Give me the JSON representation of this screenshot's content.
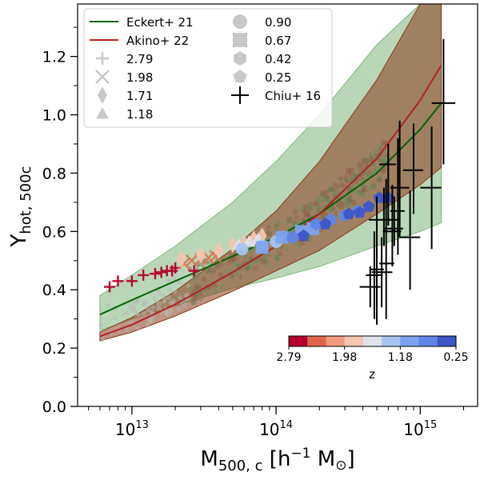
{
  "chart_data": {
    "type": "scatter",
    "xscale": "log",
    "xlim": [
      4200000000000.0,
      2500000000000000.0
    ],
    "ylim": [
      0.0,
      1.38
    ],
    "xlabel": "M",
    "xlabel_sub": "500, c",
    "xlabel_unit_open": " [h",
    "xlabel_unit_sup": "−1",
    "xlabel_unit_close": " M",
    "xlabel_sun": "⊙",
    "xlabel_end": "]",
    "ylabel": "Y",
    "ylabel_sub": "hot, 500c",
    "y_ticks": [
      0.0,
      0.2,
      0.4,
      0.6,
      0.8,
      1.0,
      1.2
    ],
    "y_tick_labels": [
      "0.0",
      "0.2",
      "0.4",
      "0.6",
      "0.8",
      "1.0",
      "1.2"
    ],
    "x_major_ticks": [
      10000000000000.0,
      100000000000000.0,
      1000000000000000.0
    ],
    "x_major_labels": [
      {
        "base": "10",
        "exp": "13"
      },
      {
        "base": "10",
        "exp": "14"
      },
      {
        "base": "10",
        "exp": "15"
      }
    ],
    "colors": {
      "eckert_line": "#006400",
      "eckert_band": "#7fb77e",
      "akino_line": "#b22222",
      "akino_band": "#8b3a1a",
      "chiu": "#000000",
      "gray_marker": "#c8c8c8"
    },
    "eckert": {
      "label": "Eckert+ 21",
      "x": [
        6000000000000.0,
        10000000000000.0,
        20000000000000.0,
        50000000000000.0,
        100000000000000.0,
        200000000000000.0,
        500000000000000.0,
        1000000000000000.0,
        1400000000000000.0
      ],
      "y": [
        0.315,
        0.365,
        0.43,
        0.515,
        0.58,
        0.66,
        0.8,
        0.95,
        1.04
      ],
      "lower": [
        0.26,
        0.3,
        0.345,
        0.405,
        0.44,
        0.48,
        0.55,
        0.6,
        0.63
      ],
      "upper": [
        0.38,
        0.45,
        0.55,
        0.7,
        0.84,
        1.0,
        1.24,
        1.38,
        1.38
      ]
    },
    "akino": {
      "label": "Akino+ 22",
      "x": [
        6000000000000.0,
        10000000000000.0,
        20000000000000.0,
        50000000000000.0,
        100000000000000.0,
        200000000000000.0,
        500000000000000.0,
        1000000000000000.0,
        1400000000000000.0
      ],
      "y": [
        0.24,
        0.28,
        0.35,
        0.46,
        0.55,
        0.66,
        0.85,
        1.05,
        1.17
      ],
      "lower": [
        0.225,
        0.255,
        0.31,
        0.395,
        0.465,
        0.535,
        0.66,
        0.76,
        0.82
      ],
      "upper": [
        0.255,
        0.305,
        0.395,
        0.54,
        0.67,
        0.84,
        1.12,
        1.38,
        1.38
      ]
    },
    "chiu": {
      "label": "Chiu+ 16",
      "points": [
        {
          "x": 450000000000000.0,
          "y": 0.41,
          "xlo": 380000000000000.0,
          "xhi": 530000000000000.0,
          "ylo": 0.34,
          "yhi": 0.48
        },
        {
          "x": 480000000000000.0,
          "y": 0.45,
          "xlo": 420000000000000.0,
          "xhi": 550000000000000.0,
          "ylo": 0.3,
          "yhi": 0.6
        },
        {
          "x": 500000000000000.0,
          "y": 0.47,
          "xlo": 450000000000000.0,
          "xhi": 560000000000000.0,
          "ylo": 0.28,
          "yhi": 0.72
        },
        {
          "x": 540000000000000.0,
          "y": 0.46,
          "xlo": 460000000000000.0,
          "xhi": 640000000000000.0,
          "ylo": 0.34,
          "yhi": 0.58
        },
        {
          "x": 560000000000000.0,
          "y": 0.64,
          "xlo": 440000000000000.0,
          "xhi": 700000000000000.0,
          "ylo": 0.55,
          "yhi": 0.75
        },
        {
          "x": 580000000000000.0,
          "y": 0.49,
          "xlo": 520000000000000.0,
          "xhi": 660000000000000.0,
          "ylo": 0.3,
          "yhi": 0.78
        },
        {
          "x": 600000000000000.0,
          "y": 0.83,
          "xlo": 520000000000000.0,
          "xhi": 680000000000000.0,
          "ylo": 0.62,
          "yhi": 0.9
        },
        {
          "x": 640000000000000.0,
          "y": 0.6,
          "xlo": 550000000000000.0,
          "xhi": 740000000000000.0,
          "ylo": 0.48,
          "yhi": 0.76
        },
        {
          "x": 660000000000000.0,
          "y": 0.61,
          "xlo": 560000000000000.0,
          "xhi": 760000000000000.0,
          "ylo": 0.55,
          "yhi": 0.72
        },
        {
          "x": 700000000000000.0,
          "y": 0.67,
          "xlo": 620000000000000.0,
          "xhi": 780000000000000.0,
          "ylo": 0.52,
          "yhi": 0.92
        },
        {
          "x": 720000000000000.0,
          "y": 0.75,
          "xlo": 620000000000000.0,
          "xhi": 840000000000000.0,
          "ylo": 0.58,
          "yhi": 0.98
        },
        {
          "x": 850000000000000.0,
          "y": 0.58,
          "xlo": 720000000000000.0,
          "xhi": 1000000000000000.0,
          "ylo": 0.4,
          "yhi": 0.74
        },
        {
          "x": 900000000000000.0,
          "y": 0.81,
          "xlo": 760000000000000.0,
          "xhi": 1050000000000000.0,
          "ylo": 0.66,
          "yhi": 0.97
        },
        {
          "x": 1200000000000000.0,
          "y": 0.75,
          "xlo": 1000000000000000.0,
          "xhi": 1400000000000000.0,
          "ylo": 0.54,
          "yhi": 0.96
        },
        {
          "x": 1450000000000000.0,
          "y": 1.04,
          "xlo": 1200000000000000.0,
          "xhi": 1750000000000000.0,
          "ylo": 0.83,
          "yhi": 1.26
        }
      ]
    },
    "colored_series": [
      {
        "name": "2.79",
        "marker": "plus",
        "color": "#b5002a",
        "x": [
          7000000000000.0,
          8000000000000.0,
          10000000000000.0,
          12000000000000.0,
          14500000000000.0,
          16000000000000.0,
          17500000000000.0,
          19000000000000.0,
          20000000000000.0,
          27000000000000.0
        ],
        "y": [
          0.41,
          0.43,
          0.43,
          0.45,
          0.455,
          0.46,
          0.465,
          0.465,
          0.475,
          0.465
        ]
      },
      {
        "name": "1.98",
        "marker": "cross",
        "color": "#d9794f",
        "x": [
          23000000000000.0,
          26000000000000.0,
          30000000000000.0,
          34000000000000.0,
          38000000000000.0
        ],
        "y": [
          0.49,
          0.5,
          0.505,
          0.51,
          0.515
        ]
      },
      {
        "name": "1.71",
        "marker": "diamond",
        "color": "#f2c6b0",
        "x": [
          22000000000000.0,
          30000000000000.0,
          40000000000000.0,
          50000000000000.0,
          60000000000000.0,
          70000000000000.0,
          80000000000000.0
        ],
        "y": [
          0.505,
          0.52,
          0.535,
          0.555,
          0.56,
          0.575,
          0.585
        ]
      },
      {
        "name": "1.18",
        "marker": "triangle",
        "color": "#dfe3ea",
        "x": [
          55000000000000.0,
          65000000000000.0,
          75000000000000.0
        ],
        "y": [
          0.555,
          0.565,
          0.575
        ]
      },
      {
        "name": "0.90",
        "marker": "circle",
        "color": "#a8c4f0",
        "x": [
          58000000000000.0,
          80000000000000.0,
          100000000000000.0
        ],
        "y": [
          0.54,
          0.55,
          0.565
        ]
      },
      {
        "name": "0.67",
        "marker": "square",
        "color": "#7ca4ee",
        "x": [
          80000000000000.0,
          110000000000000.0,
          150000000000000.0,
          180000000000000.0
        ],
        "y": [
          0.545,
          0.58,
          0.6,
          0.61
        ]
      },
      {
        "name": "0.42",
        "marker": "hexagon",
        "color": "#5f86e6",
        "x": [
          130000000000000.0,
          190000000000000.0,
          240000000000000.0,
          300000000000000.0,
          370000000000000.0
        ],
        "y": [
          0.58,
          0.625,
          0.64,
          0.655,
          0.67
        ]
      },
      {
        "name": "0.25",
        "marker": "pentagon",
        "color": "#3d55c8",
        "x": [
          155000000000000.0,
          220000000000000.0,
          320000000000000.0,
          380000000000000.0,
          440000000000000.0,
          520000000000000.0,
          600000000000000.0
        ],
        "y": [
          0.585,
          0.625,
          0.66,
          0.665,
          0.685,
          0.715,
          0.715
        ]
      }
    ],
    "legend": {
      "lines": [
        {
          "label": "Eckert+ 21",
          "color": "#006400"
        },
        {
          "label": "Akino+ 22",
          "color": "#b22222"
        }
      ],
      "markers": [
        {
          "label": "2.79",
          "marker": "plus"
        },
        {
          "label": "1.98",
          "marker": "cross"
        },
        {
          "label": "1.71",
          "marker": "diamond"
        },
        {
          "label": "1.18",
          "marker": "triangle"
        },
        {
          "label": "0.90",
          "marker": "circle"
        },
        {
          "label": "0.67",
          "marker": "square"
        },
        {
          "label": "0.42",
          "marker": "hexagon"
        },
        {
          "label": "0.25",
          "marker": "pentagon"
        }
      ],
      "chiu_label": "Chiu+ 16",
      "placement": "upper-left"
    },
    "colorbar": {
      "label": "z",
      "colors": [
        "#b5002a",
        "#e0654d",
        "#f09a7d",
        "#f2c6b0",
        "#dfe3ea",
        "#a8c4f0",
        "#7ca4ee",
        "#5f86e6",
        "#3d55c8"
      ],
      "tick_labels": [
        "2.79",
        "1.98",
        "1.18",
        "0.25"
      ],
      "placement": "lower-right"
    }
  }
}
